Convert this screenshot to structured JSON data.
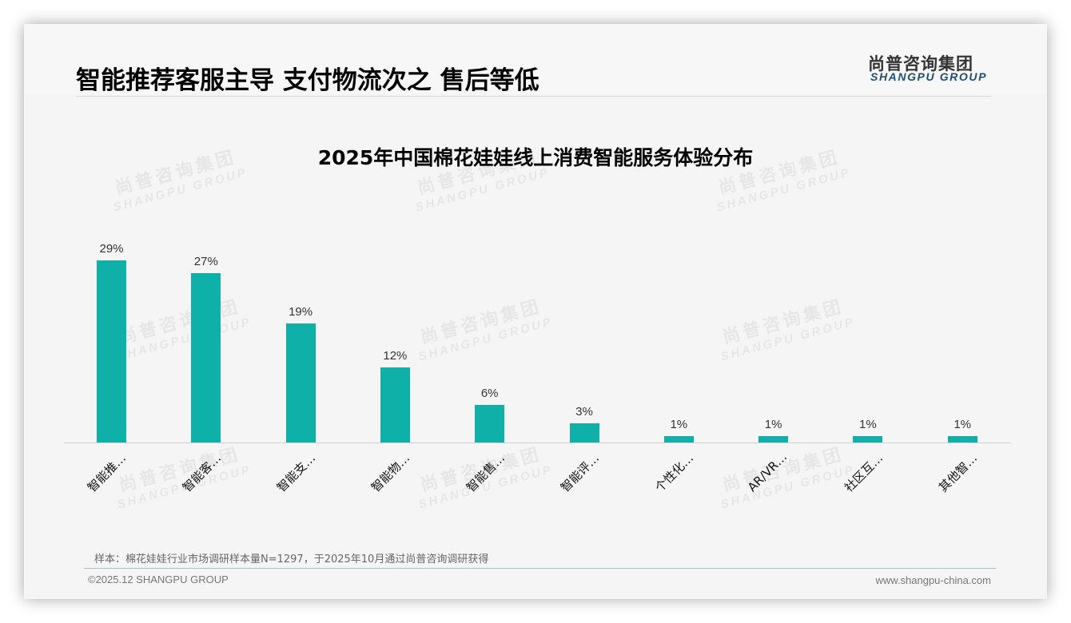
{
  "header": {
    "title": "智能推荐客服主导 支付物流次之 售后等低",
    "logo_cn": "尚普咨询集团",
    "logo_en": "SHANGPU GROUP"
  },
  "watermark": {
    "cn": "尚普咨询集团",
    "en": "SHANGPU GROUP"
  },
  "chart_data": {
    "type": "bar",
    "title": "2025年中国棉花娃娃线上消费智能服务体验分布",
    "categories": [
      "智能推…",
      "智能客…",
      "智能支…",
      "智能物…",
      "智能售…",
      "智能评…",
      "个性化…",
      "AR/VR…",
      "社区互…",
      "其他智…"
    ],
    "values": [
      29,
      27,
      19,
      12,
      6,
      3,
      1,
      1,
      1,
      1
    ],
    "value_labels": [
      "29%",
      "27%",
      "19%",
      "12%",
      "6%",
      "3%",
      "1%",
      "1%",
      "1%",
      "1%"
    ],
    "unit": "%",
    "xlabel": "",
    "ylabel": "",
    "ylim": [
      0,
      30
    ],
    "grid": false,
    "legend": null,
    "bar_color": "#0fb0a8"
  },
  "footer": {
    "note": "样本：棉花娃娃行业市场调研样本量N=1297，于2025年10月通过尚普咨询调研获得",
    "copyright": "©2025.12 SHANGPU GROUP",
    "website": "www.shangpu-china.com"
  }
}
